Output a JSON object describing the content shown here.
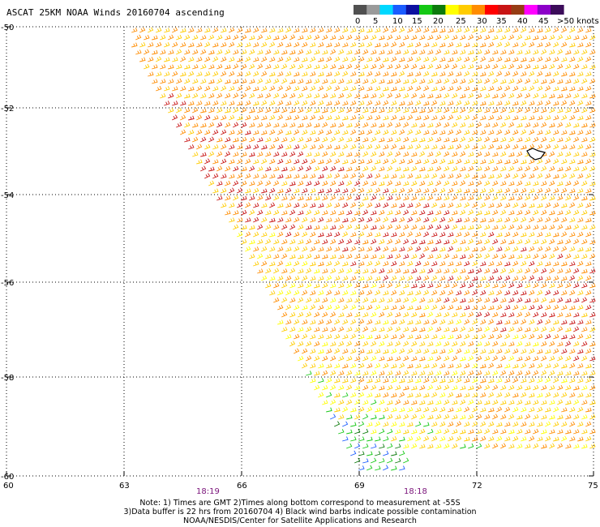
{
  "title": "ASCAT 25KM NOAA Winds 20160704 ascending",
  "legend": {
    "colors": [
      "#505050",
      "#9a9a9a",
      "#00d8ff",
      "#1a5cff",
      "#0c10a0",
      "#14c814",
      "#0c7a0c",
      "#ffff00",
      "#ffcc00",
      "#ff8c00",
      "#ff0000",
      "#c81414",
      "#963c14",
      "#ff00ff",
      "#8c00c8",
      "#3c0c5a"
    ],
    "labels": [
      "0",
      "5",
      "10",
      "15",
      "20",
      "25",
      "30",
      "35",
      "40",
      "45",
      ">50 knots"
    ]
  },
  "axes": {
    "lat_labels": [
      "-50",
      "-52",
      "-54",
      "-56",
      "-58",
      "-60"
    ],
    "lon_labels": [
      "60",
      "63",
      "66",
      "69",
      "72",
      "75"
    ]
  },
  "times": [
    "18:19",
    "18:18"
  ],
  "notes": [
    "Note: 1) Times are GMT 2)Times along bottom correspond to measurement at -55S",
    "3)Data buffer is 22 hrs from 20160704 4) Black wind barbs indicate possible contamination",
    "NOAA/NESDIS/Center for Satellite Applications and Research"
  ]
}
